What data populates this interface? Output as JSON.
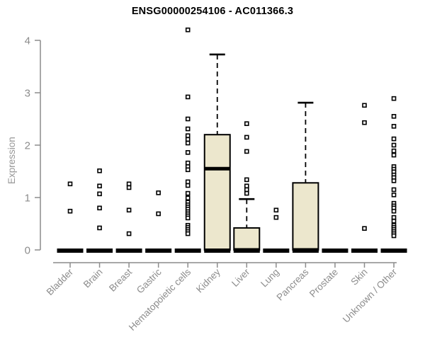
{
  "chart_data": {
    "type": "boxplot",
    "title": "ENSG00000254106 - AC011366.3",
    "ylabel": "Expression",
    "xlabel": "",
    "ylim": [
      0,
      4
    ],
    "yticks": [
      0,
      1,
      2,
      3,
      4
    ],
    "grid": "off",
    "legend": "none",
    "box_fill": "#ECE7CD",
    "box_stroke": "#000000",
    "axis_color": "#8c8c8c",
    "point_style": "open-square",
    "categories": [
      "Bladder",
      "Brain",
      "Breast",
      "Gastric",
      "Hematopoietic cells",
      "Kidney",
      "Liver",
      "Lung",
      "Pancreas",
      "Prostate",
      "Skin",
      "Unknown / Other"
    ],
    "boxes": [
      {
        "category": "Bladder",
        "q1": 0,
        "median": 0,
        "q3": 0,
        "whisker_low": 0,
        "whisker_high": 0,
        "outliers": [
          1.26,
          0.74
        ]
      },
      {
        "category": "Brain",
        "q1": 0,
        "median": 0,
        "q3": 0,
        "whisker_low": 0,
        "whisker_high": 0,
        "outliers": [
          1.51,
          1.22,
          1.07,
          0.8,
          0.42
        ]
      },
      {
        "category": "Breast",
        "q1": 0,
        "median": 0,
        "q3": 0,
        "whisker_low": 0,
        "whisker_high": 0,
        "outliers": [
          1.26,
          1.19,
          0.76,
          0.31
        ]
      },
      {
        "category": "Gastric",
        "q1": 0,
        "median": 0,
        "q3": 0,
        "whisker_low": 0,
        "whisker_high": 0,
        "outliers": [
          1.09,
          0.69
        ]
      },
      {
        "category": "Hematopoietic cells",
        "q1": 0,
        "median": 0,
        "q3": 0,
        "whisker_low": 0,
        "whisker_high": 0,
        "outliers": [
          4.2,
          2.92,
          2.5,
          2.31,
          2.18,
          2.11,
          2.04,
          1.86,
          1.66,
          1.59,
          1.53,
          1.3,
          1.23,
          1.08,
          0.99,
          0.91,
          0.86,
          0.82,
          0.78,
          0.73,
          0.69,
          0.65,
          0.61,
          0.47,
          0.43,
          0.39,
          0.35,
          0.31
        ]
      },
      {
        "category": "Kidney",
        "q1": 0,
        "median": 1.55,
        "q3": 2.2,
        "whisker_low": 0,
        "whisker_high": 3.73,
        "outliers": []
      },
      {
        "category": "Liver",
        "q1": 0,
        "median": 0,
        "q3": 0.42,
        "whisker_low": 0,
        "whisker_high": 0.97,
        "outliers": [
          2.41,
          2.15,
          1.88,
          1.34,
          1.22,
          1.15,
          1.08
        ]
      },
      {
        "category": "Lung",
        "q1": 0,
        "median": 0,
        "q3": 0,
        "whisker_low": 0,
        "whisker_high": 0,
        "outliers": [
          0.76,
          0.62
        ]
      },
      {
        "category": "Pancreas",
        "q1": 0,
        "median": 0,
        "q3": 1.28,
        "whisker_low": 0,
        "whisker_high": 2.81,
        "outliers": []
      },
      {
        "category": "Prostate",
        "q1": 0,
        "median": 0,
        "q3": 0,
        "whisker_low": 0,
        "whisker_high": 0,
        "outliers": []
      },
      {
        "category": "Skin",
        "q1": 0,
        "median": 0,
        "q3": 0,
        "whisker_low": 0,
        "whisker_high": 0,
        "outliers": [
          2.76,
          2.43,
          0.41
        ]
      },
      {
        "category": "Unknown / Other",
        "q1": 0,
        "median": 0,
        "q3": 0,
        "whisker_low": 0,
        "whisker_high": 0,
        "outliers": [
          2.89,
          2.55,
          2.36,
          2.12,
          2.0,
          1.89,
          1.81,
          1.59,
          1.54,
          1.49,
          1.43,
          1.38,
          1.32,
          1.15,
          1.05,
          0.89,
          0.84,
          0.8,
          0.74,
          0.62,
          0.55,
          0.47,
          0.43,
          0.39,
          0.35,
          0.31,
          0.27
        ]
      }
    ]
  }
}
